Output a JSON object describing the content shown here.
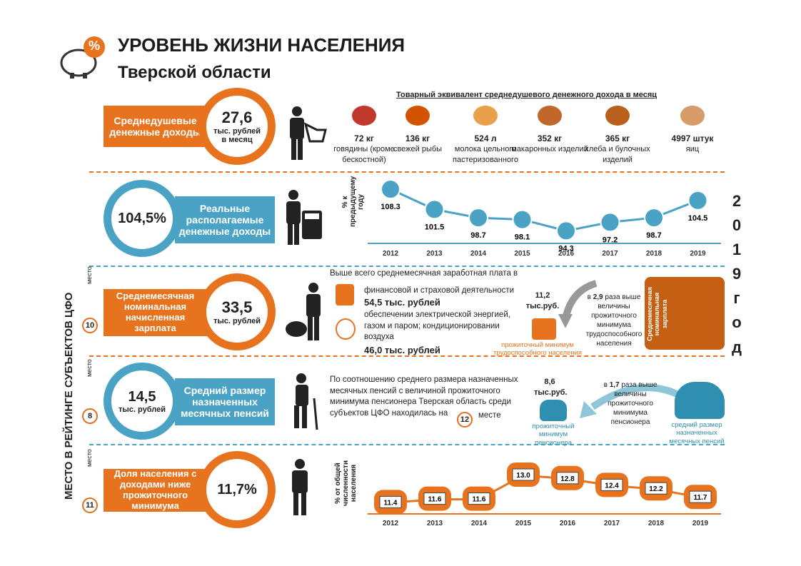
{
  "header": {
    "title": "УРОВЕНЬ ЖИЗНИ НАСЕЛЕНИЯ",
    "subtitle": "Тверской области",
    "logo_badge": "%"
  },
  "side": {
    "ranking_label": "МЕСТО В РЕЙТИНГЕ СУБЪЕКТОВ ЦФО",
    "year_label": "2 0 1 9 г о д",
    "place_word": "место"
  },
  "colors": {
    "orange": "#e8731e",
    "blue": "#4aa3c4",
    "dark": "#222222"
  },
  "income": {
    "label": "Среднедушевые денежные доходы",
    "value": "27,6",
    "unit": "тыс. рублей в месяц",
    "goods_title": "Товарный эквивалент среднедушевого денежного дохода в месяц",
    "goods": [
      {
        "icon": "meat-icon",
        "amount": "72 кг",
        "desc": "говядины (кроме бескостной)"
      },
      {
        "icon": "fish-icon",
        "amount": "136 кг",
        "desc": "свежей рыбы"
      },
      {
        "icon": "milk-icon",
        "amount": "524 л",
        "desc": "молока цельного пастеризованного"
      },
      {
        "icon": "pasta-icon",
        "amount": "352 кг",
        "desc": "макаронных изделий"
      },
      {
        "icon": "bread-icon",
        "amount": "365 кг",
        "desc": "хлеба и булочных изделий"
      },
      {
        "icon": "eggs-icon",
        "amount": "4997 штук",
        "desc": "яиц"
      }
    ]
  },
  "real_income": {
    "value": "104,5%",
    "label": "Реальные располагаемые денежные доходы",
    "axis_label": "% к предыдущему году"
  },
  "salary": {
    "rank": "10",
    "label": "Среднемесячная номинальная начисленная зарплата",
    "value": "33,5",
    "unit": "тыс. рублей",
    "intro": "Выше всего среднемесячная заработная плата в",
    "sector1": "финансовой и страховой деятельности",
    "sector1_value": "54,5 тыс. рублей",
    "sector2": "обеспечении электрической энергией, газом и паром; кондиционировании воздуха",
    "sector2_value": "46,0 тыс. рублей",
    "min_value": "11,2 тыс.руб.",
    "ratio_prefix": "в",
    "ratio": "2,9",
    "ratio_text": "раза выше величины прожиточного минимума трудоспособного населения",
    "min_caption": "прожиточный минимум трудоспособного населения",
    "wallet_caption": "Среднемесячная номинальная зарплата"
  },
  "pension": {
    "rank": "8",
    "value": "14,5",
    "unit": "тыс. рублей",
    "label": "Средний размер назначенных месячных пенсий",
    "text": "По соотношению среднего размера назначенных месячных пенсий с величиной прожиточного минимума пенсионера Тверская область среди субъектов ЦФО находилась на",
    "place_rank": "12",
    "place_word": "месте",
    "min_value": "8,6 тыс.руб.",
    "ratio_prefix": "в",
    "ratio": "1,7",
    "ratio_text": "раза выше величины прожиточного минимума пенсионера",
    "min_caption": "прожиточный минимум пенсионера",
    "avg_caption": "средний размер назначенных месячных пенсий"
  },
  "poverty": {
    "rank": "11",
    "label": "Доля населения с доходами ниже прожиточного минимума",
    "value": "11,7%",
    "axis_label": "% от общей численности населения"
  },
  "chart_data": [
    {
      "type": "line",
      "title": "",
      "ylabel": "% к предыдущему году",
      "x": [
        "2012",
        "2013",
        "2014",
        "2015",
        "2016",
        "2017",
        "2018",
        "2019"
      ],
      "series": [
        {
          "values": [
            108.3,
            101.5,
            98.7,
            98.1,
            94.3,
            97.2,
            98.7,
            104.5
          ]
        }
      ],
      "ylim": [
        92,
        110
      ]
    },
    {
      "type": "line",
      "title": "",
      "ylabel": "% от общей численности населения",
      "x": [
        "2012",
        "2013",
        "2014",
        "2015",
        "2016",
        "2017",
        "2018",
        "2019"
      ],
      "series": [
        {
          "values": [
            11.4,
            11.6,
            11.6,
            13.0,
            12.8,
            12.4,
            12.2,
            11.7
          ]
        }
      ],
      "ylim": [
        11,
        13.5
      ]
    }
  ]
}
